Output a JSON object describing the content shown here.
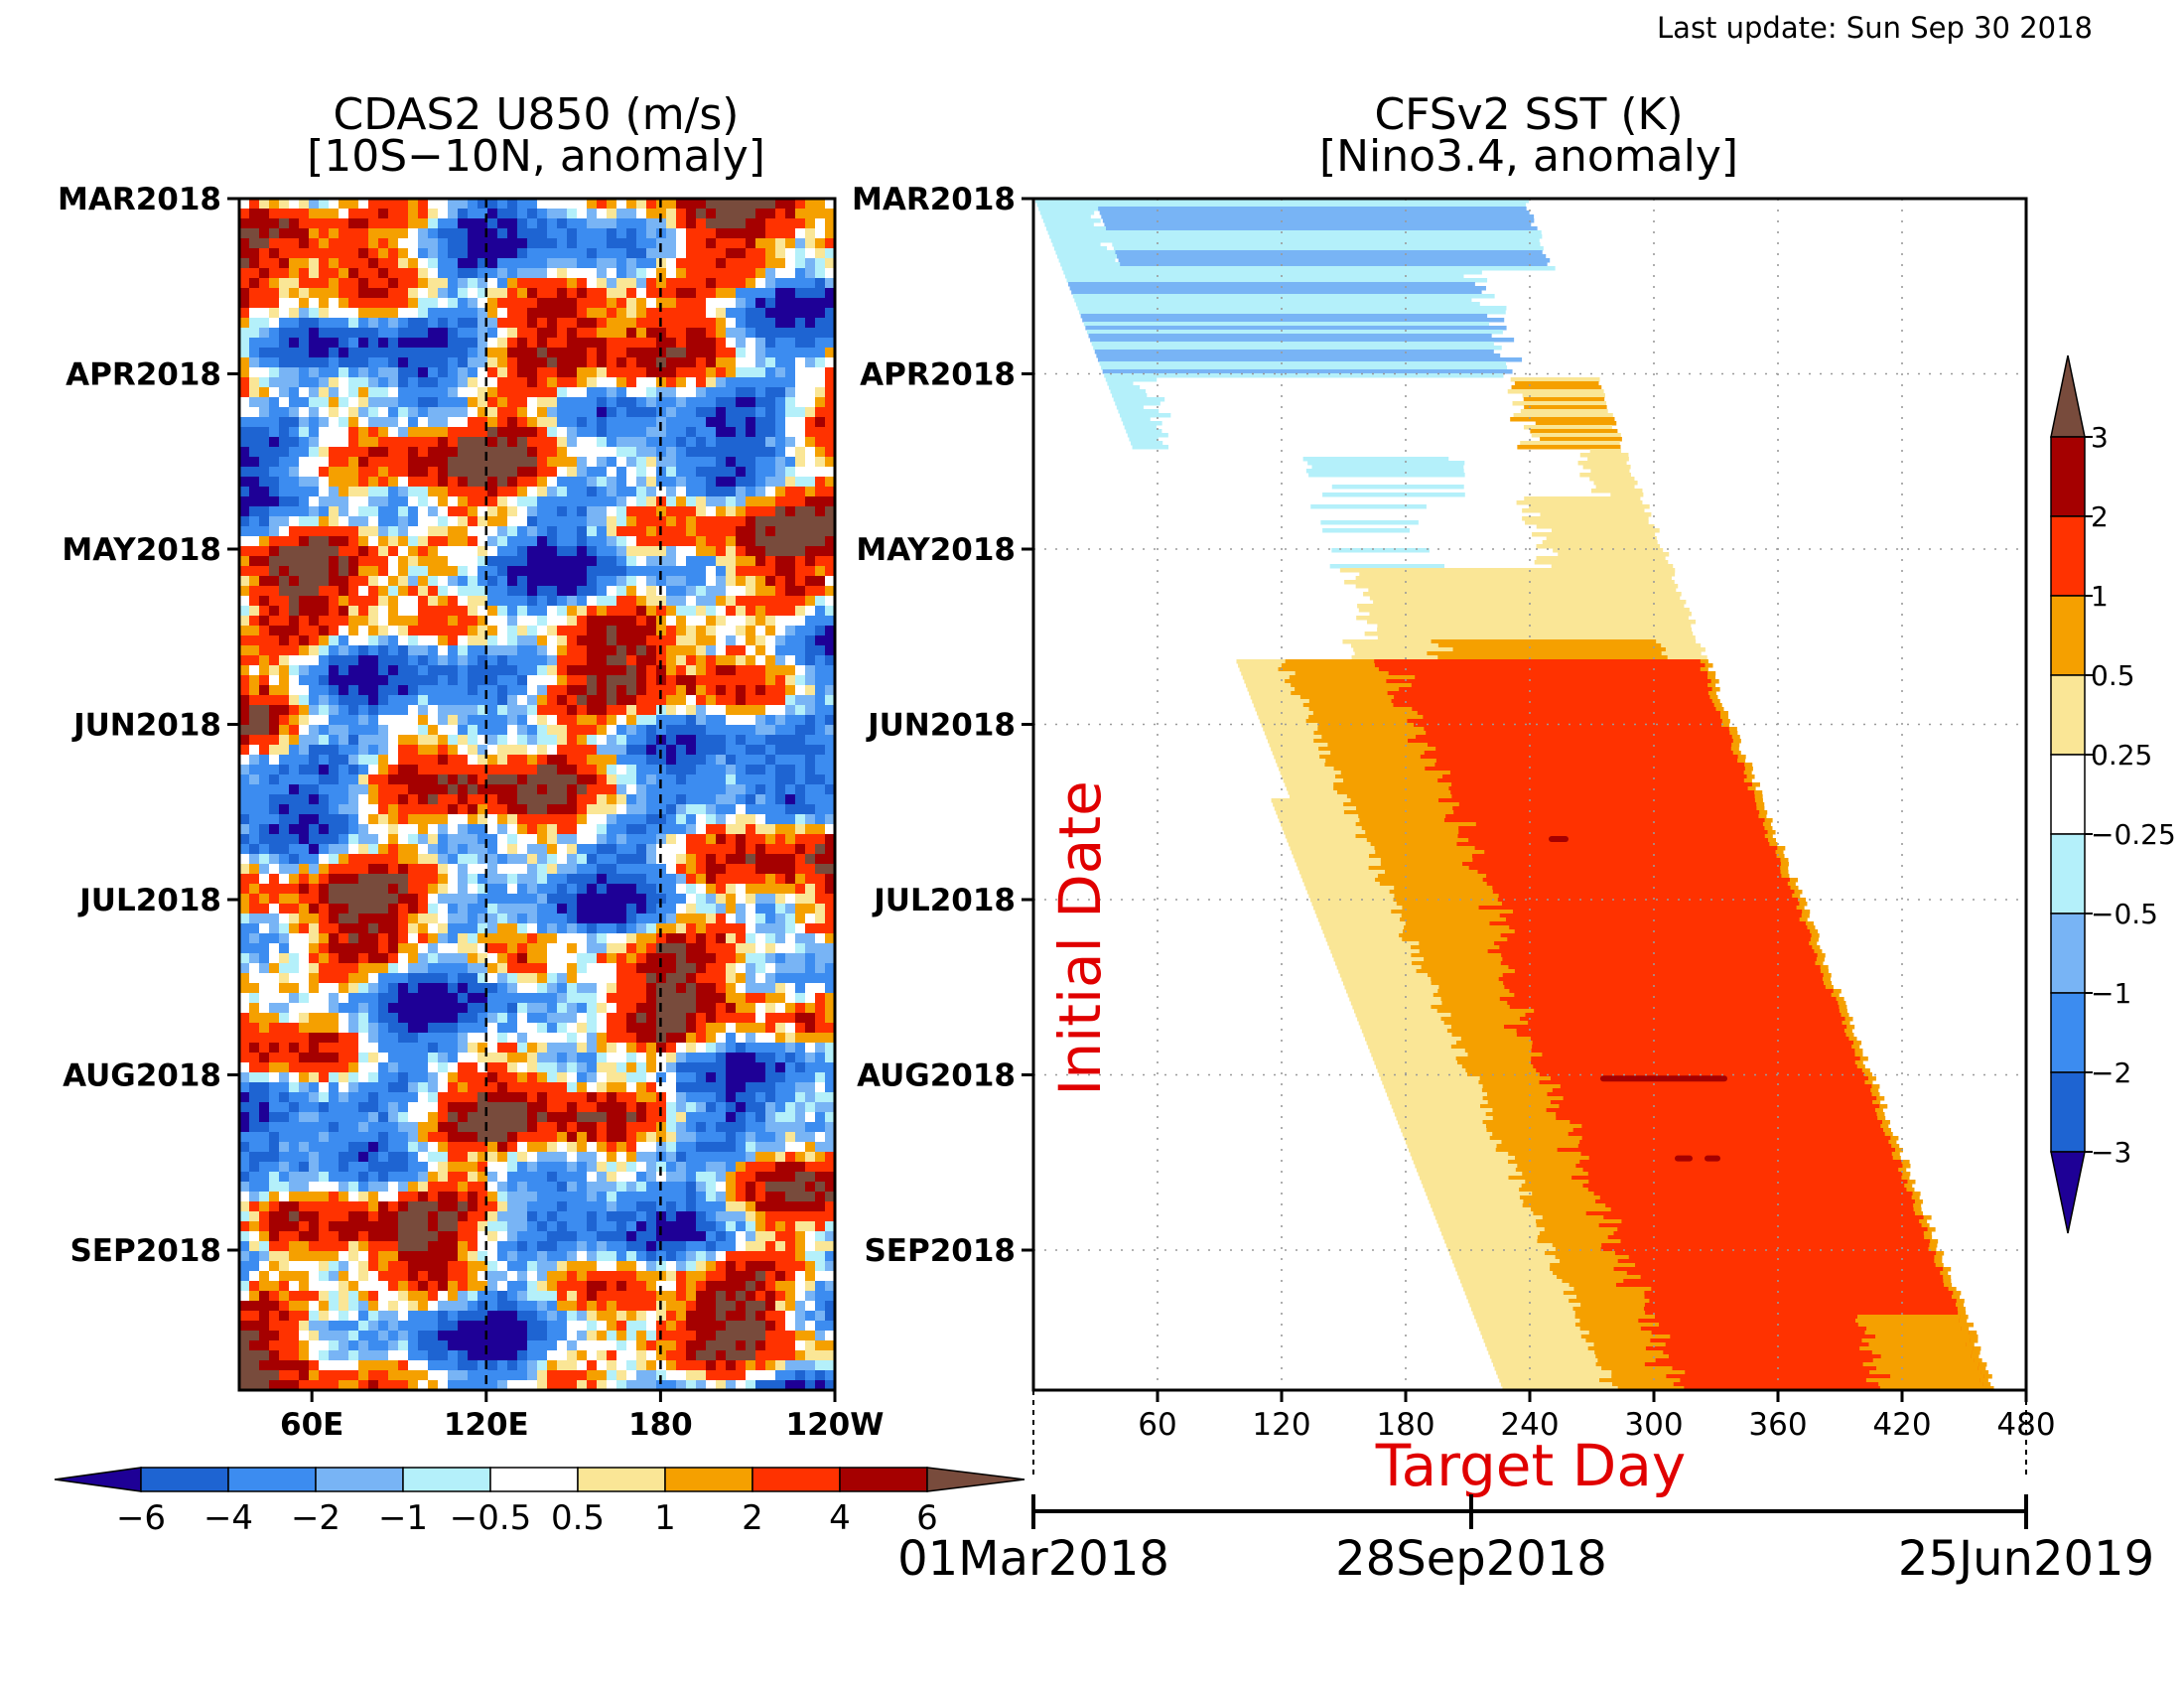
{
  "last_update": "Last update: Sun Sep 30 2018",
  "palette": {
    "neg": [
      "#1e0096",
      "#1e64d2",
      "#3c8cf0",
      "#78b4f5",
      "#b4f0fa"
    ],
    "zero": "#ffffff",
    "pos": [
      "#fae696",
      "#f5a000",
      "#ff3200",
      "#a50000",
      "#784b3c"
    ]
  },
  "chart_data": [
    {
      "type": "heatmap",
      "title_line1": "CDAS2 U850 (m/s)",
      "title_line2": "[10S−10N, anomaly]",
      "y_tick_labels": [
        "MAR2018",
        "APR2018",
        "MAY2018",
        "JUN2018",
        "JUL2018",
        "AUG2018",
        "SEP2018"
      ],
      "x_tick_labels": [
        "60E",
        "120E",
        "180",
        "120W"
      ],
      "x_ticks_lon": [
        60,
        120,
        180,
        240
      ],
      "x_range_lon": [
        35,
        240
      ],
      "reference_lines_lon": [
        120,
        180
      ],
      "colorbar": {
        "orientation": "horizontal",
        "levels": [
          -6,
          -4,
          -2,
          -1,
          -0.5,
          0.5,
          1,
          2,
          4,
          6
        ],
        "tick_labels": [
          "−6",
          "−4",
          "−2",
          "−1",
          "−0.5",
          "0.5",
          "1",
          "2",
          "4",
          "6"
        ]
      }
    },
    {
      "type": "heatmap",
      "title_line1": "CFSv2 SST (K)",
      "title_line2": "[Nino3.4, anomaly]",
      "ylabel": "Initial Date",
      "xlabel": "Target Day",
      "y_tick_labels": [
        "MAR2018",
        "APR2018",
        "MAY2018",
        "JUN2018",
        "JUL2018",
        "AUG2018",
        "SEP2018"
      ],
      "x_tick_labels": [
        "60",
        "120",
        "180",
        "240",
        "300",
        "360",
        "420",
        "480"
      ],
      "x_range_day": [
        0,
        480
      ],
      "grid": "dotted",
      "date_axis_labels": [
        "01Mar2018",
        "28Sep2018",
        "25Jun2019"
      ],
      "colorbar": {
        "orientation": "vertical",
        "levels": [
          -3,
          -2,
          -1,
          -0.5,
          -0.25,
          0.25,
          0.5,
          1,
          2,
          3
        ],
        "tick_labels": [
          "−3",
          "−2",
          "−1",
          "−0.5",
          "−0.25",
          "0.25",
          "0.5",
          "1",
          "2",
          "3"
        ]
      }
    }
  ]
}
